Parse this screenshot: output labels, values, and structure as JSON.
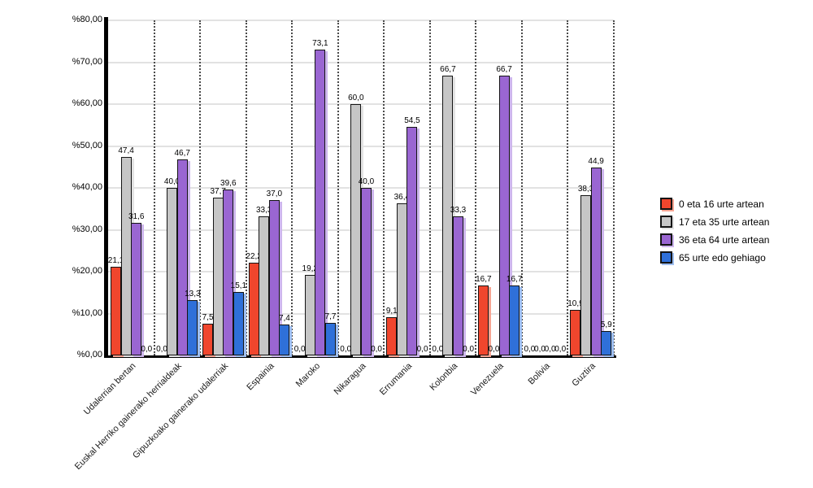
{
  "chart_data": {
    "type": "bar",
    "title": "",
    "categories": [
      "Udalerrian bertan",
      "Euskal Herriko gainerako herrialdeak",
      "Gipuzkoako gainerako udalerriak",
      "Espainia",
      "Maroko",
      "Nikaragua",
      "Errumania",
      "Kolonbia",
      "Venezuela",
      "Bolivia",
      "Guztira"
    ],
    "series": [
      {
        "name": "0 eta 16 urte artean",
        "color": "#F0462D",
        "shadow_color": "#F7A593",
        "values": [
          21.1,
          0.0,
          7.5,
          22.2,
          0.0,
          0.0,
          9.1,
          0.0,
          16.7,
          0.0,
          10.9
        ]
      },
      {
        "name": "17 eta 35 urte artean",
        "color": "#C6C6C6",
        "shadow_color": "#E3E3E3",
        "values": [
          47.4,
          40.0,
          37.7,
          33.3,
          19.2,
          60.0,
          36.4,
          66.7,
          0.0,
          0.0,
          38.3
        ]
      },
      {
        "name": "36 eta 64 urte artean",
        "color": "#9A66D2",
        "shadow_color": "#CDB6EC",
        "values": [
          31.6,
          46.7,
          39.6,
          37.0,
          73.1,
          40.0,
          54.5,
          33.3,
          66.7,
          0.0,
          44.9
        ]
      },
      {
        "name": "65 urte edo gehiago",
        "color": "#2F70D9",
        "shadow_color": "#9FBFF0",
        "values": [
          0.0,
          13.3,
          15.1,
          7.4,
          7.7,
          0.0,
          0.0,
          0.0,
          16.7,
          0.0,
          5.9
        ]
      }
    ],
    "y_axis": {
      "min": 0,
      "max": 80,
      "step": 10,
      "tick_labels": [
        "%0,00",
        "%10,00",
        "%20,00",
        "%30,00",
        "%40,00",
        "%50,00",
        "%60,00",
        "%70,00",
        "%80,00"
      ]
    },
    "value_labels": true,
    "decimal_separator": ",",
    "zero_label": "0,0",
    "legend_position": "right",
    "grid": {
      "horizontal": true,
      "vertical_group_separators": "dotted"
    },
    "xlabel": "",
    "ylabel": ""
  }
}
